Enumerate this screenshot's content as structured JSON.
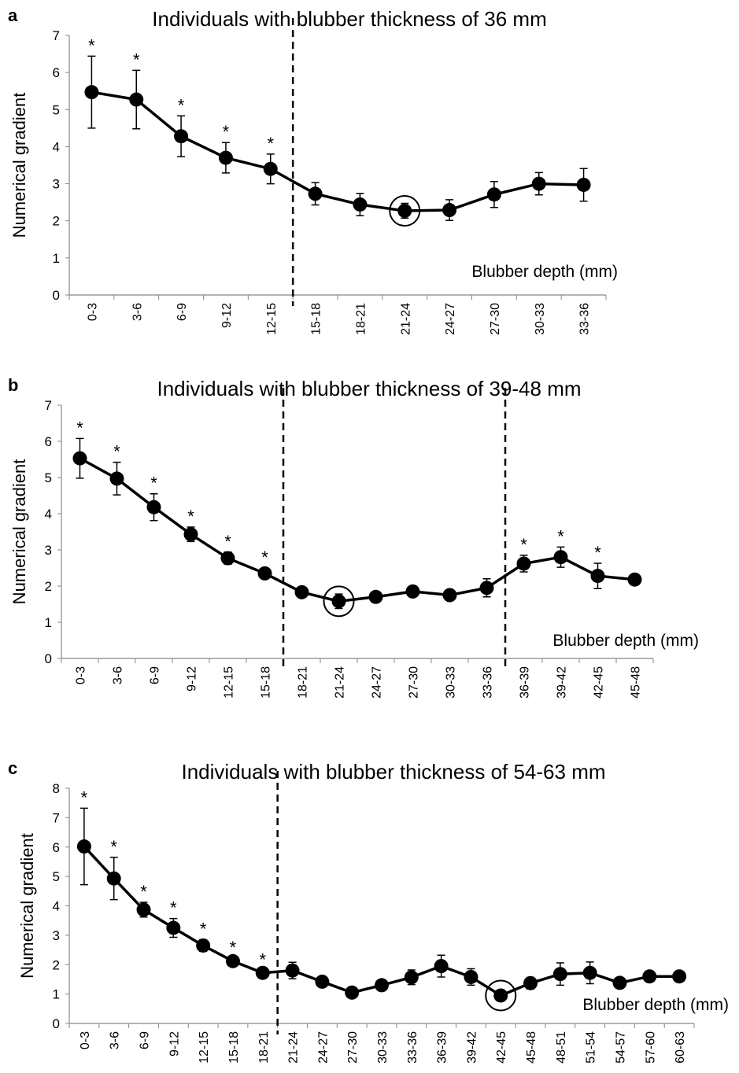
{
  "chart_data": [
    {
      "type": "line",
      "panel": "a",
      "title": "Individuals with blubber thickness of 36 mm",
      "ylabel": "Numerical gradient",
      "annotation": "Blubber depth (mm)",
      "categories": [
        "0-3",
        "3-6",
        "6-9",
        "9-12",
        "12-15",
        "15-18",
        "18-21",
        "21-24",
        "24-27",
        "27-30",
        "30-33",
        "33-36"
      ],
      "values": [
        5.47,
        5.27,
        4.28,
        3.7,
        3.4,
        2.73,
        2.44,
        2.27,
        2.29,
        2.71,
        3.0,
        2.97
      ],
      "errors": [
        0.97,
        0.79,
        0.55,
        0.41,
        0.4,
        0.3,
        0.3,
        0.2,
        0.28,
        0.35,
        0.3,
        0.44
      ],
      "markers": [
        "*",
        "*",
        "*",
        "*",
        "*",
        null,
        null,
        null,
        null,
        null,
        null,
        null
      ],
      "dividers_before": [
        "15-18"
      ],
      "circled": "21-24",
      "color": "#000000",
      "ylim": [
        0,
        7
      ],
      "yticks": [
        0,
        1,
        2,
        3,
        4,
        5,
        6,
        7
      ]
    },
    {
      "type": "line",
      "panel": "b",
      "title": "Individuals with blubber thickness of 39-48 mm",
      "ylabel": "Numerical gradient",
      "annotation": "Blubber depth (mm)",
      "categories": [
        "0-3",
        "3-6",
        "6-9",
        "9-12",
        "12-15",
        "15-18",
        "18-21",
        "21-24",
        "24-27",
        "27-30",
        "30-33",
        "33-36",
        "36-39",
        "39-42",
        "42-45",
        "45-48"
      ],
      "values": [
        5.53,
        4.97,
        4.18,
        3.43,
        2.77,
        2.35,
        1.83,
        1.58,
        1.7,
        1.85,
        1.75,
        1.95,
        2.62,
        2.8,
        2.28,
        2.18
      ],
      "errors": [
        0.55,
        0.45,
        0.37,
        0.2,
        0.17,
        0.15,
        0.08,
        0.2,
        0.15,
        0.15,
        0.1,
        0.25,
        0.23,
        0.28,
        0.35,
        0.07
      ],
      "markers": [
        "*",
        "*",
        "*",
        "*",
        "*",
        "*",
        null,
        null,
        null,
        null,
        null,
        null,
        "*",
        "*",
        "*",
        null
      ],
      "dividers_before": [
        "18-21",
        "36-39"
      ],
      "circled": "21-24",
      "color": "#000000",
      "ylim": [
        0,
        7
      ],
      "yticks": [
        0,
        1,
        2,
        3,
        4,
        5,
        6,
        7
      ]
    },
    {
      "type": "line",
      "panel": "c",
      "title": "Individuals with blubber thickness of 54-63 mm",
      "ylabel": "Numerical gradient",
      "annotation": "Blubber depth (mm)",
      "categories": [
        "0-3",
        "3-6",
        "6-9",
        "9-12",
        "12-15",
        "15-18",
        "18-21",
        "21-24",
        "24-27",
        "27-30",
        "30-33",
        "33-36",
        "36-39",
        "39-42",
        "42-45",
        "45-48",
        "48-51",
        "51-54",
        "54-57",
        "57-60",
        "60-63"
      ],
      "values": [
        6.02,
        4.93,
        3.87,
        3.25,
        2.65,
        2.12,
        1.72,
        1.8,
        1.42,
        1.05,
        1.3,
        1.57,
        1.95,
        1.58,
        0.95,
        1.37,
        1.68,
        1.72,
        1.38,
        1.6,
        1.6
      ],
      "errors": [
        1.3,
        0.72,
        0.25,
        0.32,
        0.2,
        0.1,
        0.08,
        0.28,
        0.1,
        0.08,
        0.15,
        0.25,
        0.37,
        0.28,
        0.15,
        0.2,
        0.38,
        0.37,
        0.1,
        0.1,
        0.08
      ],
      "markers": [
        "*",
        "*",
        "*",
        "*",
        "*",
        "*",
        "*",
        null,
        null,
        null,
        null,
        null,
        null,
        null,
        null,
        null,
        null,
        null,
        null,
        null,
        null
      ],
      "dividers_before": [
        "21-24"
      ],
      "circled": "42-45",
      "color": "#000000",
      "ylim": [
        0,
        8
      ],
      "yticks": [
        0,
        1,
        2,
        3,
        4,
        5,
        6,
        7,
        8
      ]
    }
  ]
}
